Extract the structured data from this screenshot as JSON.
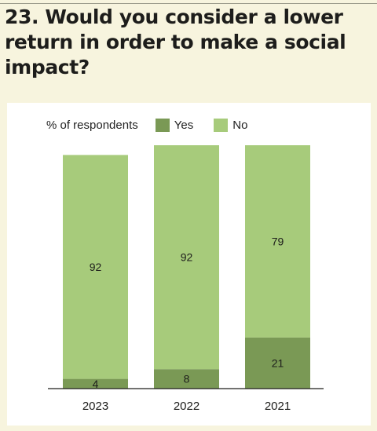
{
  "title": "23. Would you consider a lower return in order to make a social impact?",
  "colors": {
    "yes": "#7a9955",
    "no": "#a7cb7b",
    "background": "#f7f4de"
  },
  "chart_data": {
    "type": "bar",
    "stacked": true,
    "legend_title": "% of respondents",
    "legend_position": "top-left",
    "categories": [
      "2023",
      "2022",
      "2021"
    ],
    "series": [
      {
        "name": "Yes",
        "values": [
          4,
          8,
          21
        ]
      },
      {
        "name": "No",
        "values": [
          92,
          92,
          79
        ]
      }
    ],
    "ylim": [
      0,
      100
    ],
    "grid": false
  }
}
